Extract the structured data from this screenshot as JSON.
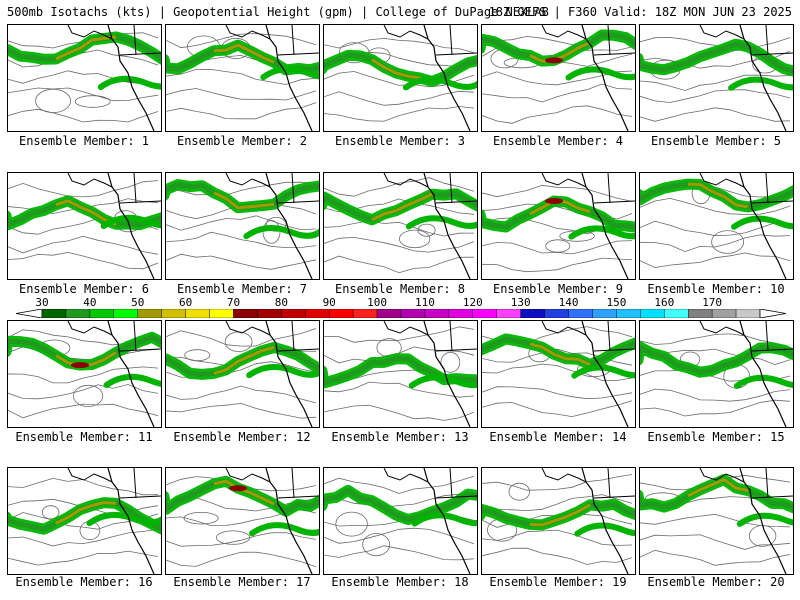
{
  "header": {
    "title_left": "500mb Isotachs (kts) | Geopotential Height (gpm) | College of DuPage NEXLAB",
    "title_right": "18Z GEFS | F360 Valid: 18Z MON JUN 23 2025"
  },
  "members": [
    {
      "caption": "Ensemble Member: 1",
      "jet_intensity": 2
    },
    {
      "caption": "Ensemble Member: 2",
      "jet_intensity": 2
    },
    {
      "caption": "Ensemble Member: 3",
      "jet_intensity": 2
    },
    {
      "caption": "Ensemble Member: 4",
      "jet_intensity": 3
    },
    {
      "caption": "Ensemble Member: 5",
      "jet_intensity": 1
    },
    {
      "caption": "Ensemble Member: 6",
      "jet_intensity": 2
    },
    {
      "caption": "Ensemble Member: 7",
      "jet_intensity": 2
    },
    {
      "caption": "Ensemble Member: 8",
      "jet_intensity": 2
    },
    {
      "caption": "Ensemble Member: 9",
      "jet_intensity": 3
    },
    {
      "caption": "Ensemble Member: 10",
      "jet_intensity": 2
    },
    {
      "caption": "Ensemble Member: 11",
      "jet_intensity": 3
    },
    {
      "caption": "Ensemble Member: 12",
      "jet_intensity": 2
    },
    {
      "caption": "Ensemble Member: 13",
      "jet_intensity": 1
    },
    {
      "caption": "Ensemble Member: 14",
      "jet_intensity": 2
    },
    {
      "caption": "Ensemble Member: 15",
      "jet_intensity": 1
    },
    {
      "caption": "Ensemble Member: 16",
      "jet_intensity": 2
    },
    {
      "caption": "Ensemble Member: 17",
      "jet_intensity": 3
    },
    {
      "caption": "Ensemble Member: 18",
      "jet_intensity": 1
    },
    {
      "caption": "Ensemble Member: 19",
      "jet_intensity": 2
    },
    {
      "caption": "Ensemble Member: 20",
      "jet_intensity": 2
    }
  ],
  "colorbar": {
    "labels": [
      "30",
      "40",
      "50",
      "60",
      "70",
      "80",
      "90",
      "100",
      "110",
      "120",
      "130",
      "140",
      "150",
      "160",
      "170"
    ],
    "colors": [
      "#006400",
      "#1f9a1f",
      "#00c800",
      "#00ff00",
      "#a09a00",
      "#d0c000",
      "#f0e000",
      "#ffff00",
      "#8b0000",
      "#a00000",
      "#c00000",
      "#e00000",
      "#ff0000",
      "#ff2020",
      "#a0008a",
      "#b000b0",
      "#c800c8",
      "#e000e0",
      "#ff00ff",
      "#ff40ff",
      "#1010c0",
      "#2040e0",
      "#3070ff",
      "#30a0ff",
      "#20c0ff",
      "#00e0ff",
      "#40ffff",
      "#808080",
      "#a0a0a0",
      "#c8c8c8"
    ]
  },
  "map_colors": {
    "coast": "#000000",
    "height_contour": "#6a6a6a",
    "jet_outer": "#00b400",
    "jet_inner": "#a09a00",
    "jet_core": "#8b0000"
  }
}
